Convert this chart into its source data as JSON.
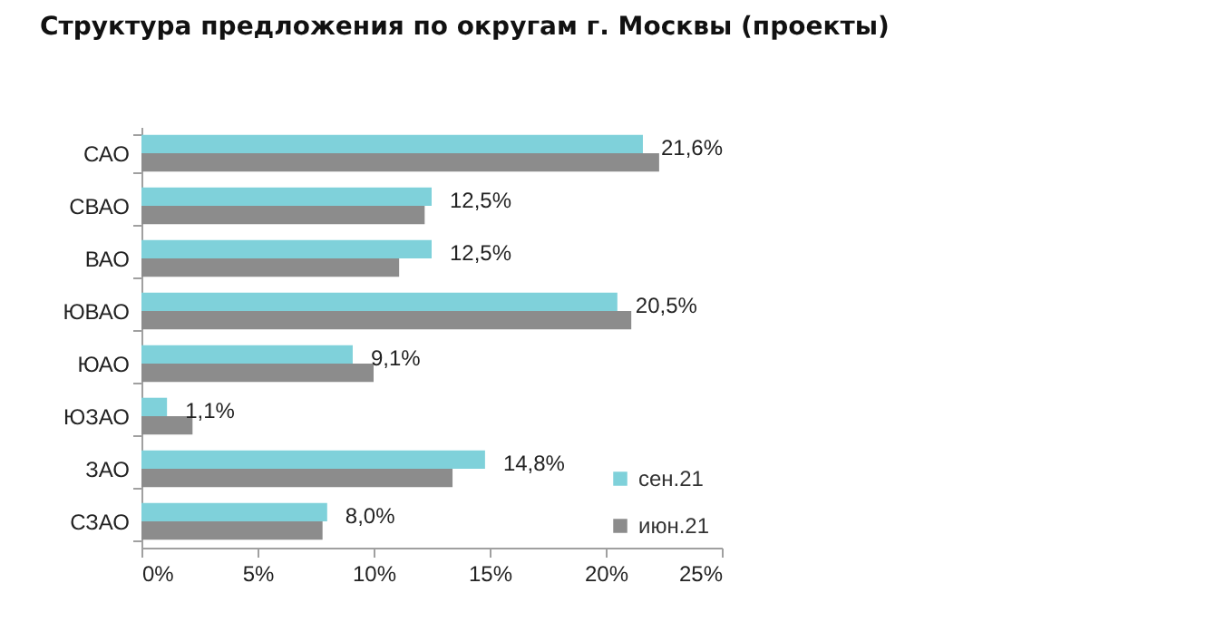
{
  "chart_data": {
    "type": "bar",
    "orientation": "horizontal",
    "title": "Структура предложения по округам г. Москвы (проекты)",
    "categories": [
      "САО",
      "СВАО",
      "ВАО",
      "ЮВАО",
      "ЮАО",
      "ЮЗАО",
      "ЗАО",
      "СЗАО"
    ],
    "series": [
      {
        "name": "сен.21",
        "color": "#7fd1da",
        "values": [
          21.6,
          12.5,
          12.5,
          20.5,
          9.1,
          1.1,
          14.8,
          8.0
        ],
        "value_labels": [
          "21,6%",
          "12,5%",
          "12,5%",
          "20,5%",
          "9,1%",
          "1,1%",
          "14,8%",
          "8,0%"
        ]
      },
      {
        "name": "июн.21",
        "color": "#8c8c8c",
        "values": [
          22.3,
          12.2,
          11.1,
          21.1,
          10.0,
          2.2,
          13.4,
          7.8
        ]
      }
    ],
    "xlim": [
      0,
      25
    ],
    "xticks": [
      {
        "value": 0,
        "label": "0%"
      },
      {
        "value": 5,
        "label": "5%"
      },
      {
        "value": 10,
        "label": "10%"
      },
      {
        "value": 15,
        "label": "15%"
      },
      {
        "value": 20,
        "label": "20%"
      },
      {
        "value": 25,
        "label": "25%"
      }
    ],
    "grid": false,
    "legend": "bottom right"
  }
}
